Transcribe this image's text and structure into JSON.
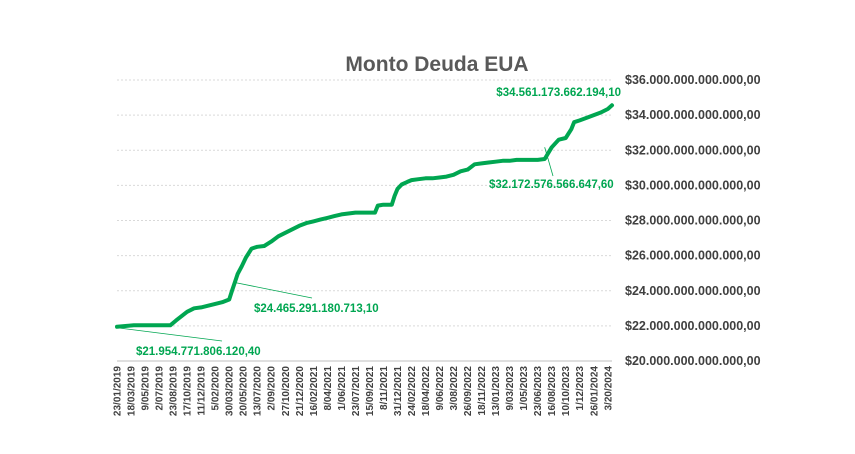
{
  "chart_data": {
    "type": "line",
    "title": "Monto Deuda EUA",
    "xlabel": "",
    "ylabel": "",
    "ylim": [
      20000000000000,
      36000000000000
    ],
    "y_axis_side": "right",
    "y_ticks": [
      "$20.000.000.000.000,00",
      "$22.000.000.000.000,00",
      "$24.000.000.000.000,00",
      "$26.000.000.000.000,00",
      "$28.000.000.000.000,00",
      "$30.000.000.000.000,00",
      "$32.000.000.000.000,00",
      "$34.000.000.000.000,00",
      "$36.000.000.000.000,00"
    ],
    "x_tick_labels": [
      "23/01/2019",
      "18/03/2019",
      "9/05/2019",
      "2/07/2019",
      "23/08/2019",
      "17/10/2019",
      "11/12/2019",
      "5/02/2020",
      "30/03/2020",
      "20/05/2020",
      "13/07/2020",
      "2/09/2020",
      "27/10/2020",
      "21/12/2020",
      "16/02/2021",
      "8/04/2021",
      "1/06/2021",
      "23/07/2021",
      "15/09/2021",
      "8/11/2021",
      "31/12/2021",
      "24/02/2022",
      "18/04/2022",
      "9/06/2022",
      "3/08/2022",
      "26/09/2022",
      "18/11/2022",
      "13/01/2023",
      "9/03/2023",
      "1/05/2023",
      "23/06/2023",
      "16/08/2023",
      "10/10/2023",
      "1/12/2023",
      "26/01/2024",
      "3/20/2024"
    ],
    "grid": true,
    "legend": "none",
    "line_color": "#00a651",
    "series": [
      {
        "x": [
          0,
          0.7,
          1.2,
          1.7,
          2.2,
          2.7,
          3.2,
          3.6,
          3.8,
          4.2,
          4.6,
          5.0,
          5.5,
          6.0,
          6.5,
          7.0,
          7.5,
          8.0,
          8.2,
          8.4,
          8.6,
          8.9,
          9.2,
          9.6,
          10.0,
          10.5,
          11.0,
          11.5,
          12.0,
          12.5,
          13.0,
          13.5,
          14.0,
          14.5,
          15.0,
          15.5,
          16.0,
          16.5,
          17.0,
          17.3,
          17.5,
          18.0,
          18.4,
          18.6,
          19.0,
          19.4,
          19.6,
          19.8,
          20.0,
          20.3,
          20.7,
          21.0,
          21.5,
          22.0,
          22.5,
          23.0,
          23.5,
          24.0,
          24.5,
          25.0,
          25.5,
          26.0,
          26.5,
          27.0,
          27.5,
          28.0,
          28.5,
          29.0,
          29.4,
          29.6,
          30.0,
          30.5,
          31.0,
          31.5,
          32.0,
          32.4,
          32.6,
          33.0,
          33.5,
          34.0,
          34.5,
          35.0,
          35.3
        ],
        "values": [
          21950000000000.0,
          22000000000000.0,
          22030000000000.0,
          22030000000000.0,
          22030000000000.0,
          22030000000000.0,
          22030000000000.0,
          22030000000000.0,
          22030000000000.0,
          22300000000000.0,
          22550000000000.0,
          22800000000000.0,
          23000000000000.0,
          23050000000000.0,
          23150000000000.0,
          23250000000000.0,
          23350000000000.0,
          23500000000000.0,
          24000000000000.0,
          24470000000000.0,
          24950000000000.0,
          25400000000000.0,
          25900000000000.0,
          26400000000000.0,
          26500000000000.0,
          26550000000000.0,
          26800000000000.0,
          27100000000000.0,
          27300000000000.0,
          27500000000000.0,
          27700000000000.0,
          27850000000000.0,
          27950000000000.0,
          28050000000000.0,
          28150000000000.0,
          28250000000000.0,
          28350000000000.0,
          28400000000000.0,
          28450000000000.0,
          28450000000000.0,
          28450000000000.0,
          28450000000000.0,
          28450000000000.0,
          28850000000000.0,
          28900000000000.0,
          28900000000000.0,
          28900000000000.0,
          29400000000000.0,
          29800000000000.0,
          30050000000000.0,
          30200000000000.0,
          30300000000000.0,
          30350000000000.0,
          30400000000000.0,
          30400000000000.0,
          30450000000000.0,
          30500000000000.0,
          30600000000000.0,
          30800000000000.0,
          30900000000000.0,
          31200000000000.0,
          31250000000000.0,
          31300000000000.0,
          31350000000000.0,
          31400000000000.0,
          31400000000000.0,
          31450000000000.0,
          31450000000000.0,
          31450000000000.0,
          31450000000000.0,
          31450000000000.0,
          31500000000000.0,
          32170000000000.0,
          32600000000000.0,
          32700000000000.0,
          33200000000000.0,
          33600000000000.0,
          33700000000000.0,
          33850000000000.0,
          34000000000000.0,
          34150000000000.0,
          34350000000000.0,
          34560000000000.0
        ]
      }
    ],
    "annotations": [
      {
        "text": "$21.954.771.806.120,40",
        "x": 0,
        "y": 21950000000000.0,
        "color": "#00a651",
        "label_side": "below-right"
      },
      {
        "text": "$24.465.291.180.713,10",
        "x": 8.4,
        "y": 24470000000000.0,
        "color": "#00a651",
        "label_side": "below-right"
      },
      {
        "text": "$32.172.576.566.647,60",
        "x": 30.5,
        "y": 32170000000000.0,
        "color": "#00a651",
        "label_side": "below-right"
      },
      {
        "text": "$34.561.173.662.194,10",
        "x": 35.3,
        "y": 34560000000000.0,
        "color": "#00a651",
        "label_side": "above-left"
      }
    ]
  }
}
